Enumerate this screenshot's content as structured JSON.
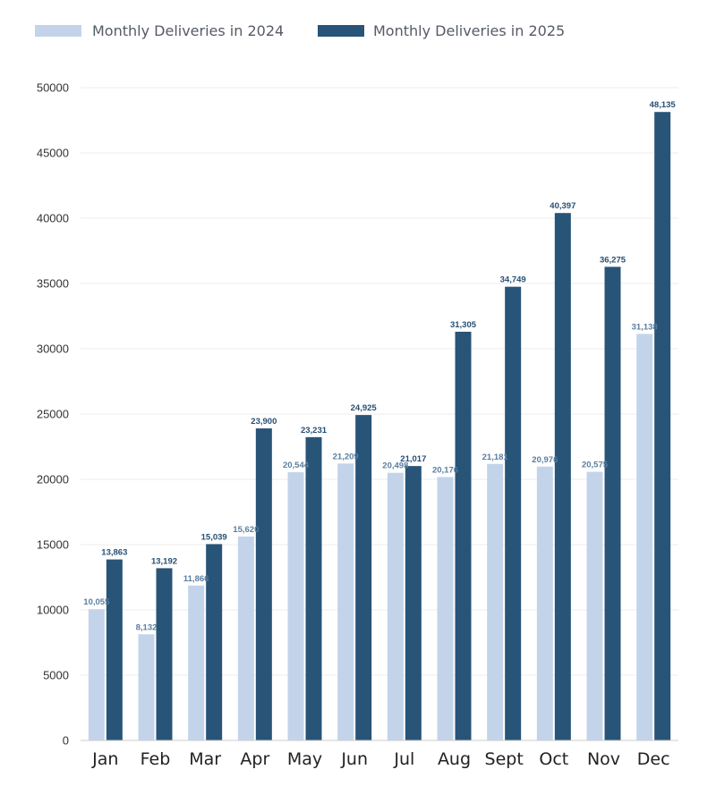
{
  "colors": {
    "series_2024": "#c3d4ea",
    "series_2025": "#285478",
    "label_2024": "#5a7ea0",
    "label_2025": "#264f73"
  },
  "legend": {
    "item_2024": "Monthly Deliveries in 2024",
    "item_2025": "Monthly Deliveries in 2025"
  },
  "chart_data": {
    "type": "bar",
    "categories": [
      "Jan",
      "Feb",
      "Mar",
      "Apr",
      "May",
      "Jun",
      "Jul",
      "Aug",
      "Sept",
      "Oct",
      "Nov",
      "Dec"
    ],
    "series": [
      {
        "name": "Monthly Deliveries in 2024",
        "values": [
          10055,
          8132,
          11866,
          15620,
          20544,
          21209,
          20498,
          20176,
          21181,
          20976,
          20575,
          31138
        ],
        "labels": [
          "10,055",
          "8,132",
          "11,866",
          "15,620",
          "20,544",
          "21,209",
          "20,498",
          "20,176",
          "21,181",
          "20,976",
          "20,575",
          "31,138"
        ]
      },
      {
        "name": "Monthly Deliveries in 2025",
        "values": [
          13863,
          13192,
          15039,
          23900,
          23231,
          24925,
          21017,
          31305,
          34749,
          40397,
          36275,
          48135
        ],
        "labels": [
          "13,863",
          "13,192",
          "15,039",
          "23,900",
          "23,231",
          "24,925",
          "21,017",
          "31,305",
          "34,749",
          "40,397",
          "36,275",
          "48,135"
        ]
      }
    ],
    "yticks": [
      "0",
      "5000",
      "10000",
      "15000",
      "20000",
      "25000",
      "30000",
      "35000",
      "40000",
      "45000",
      "50000"
    ],
    "ylim": [
      0,
      50000
    ],
    "grid": true,
    "legend_position": "top-left"
  }
}
